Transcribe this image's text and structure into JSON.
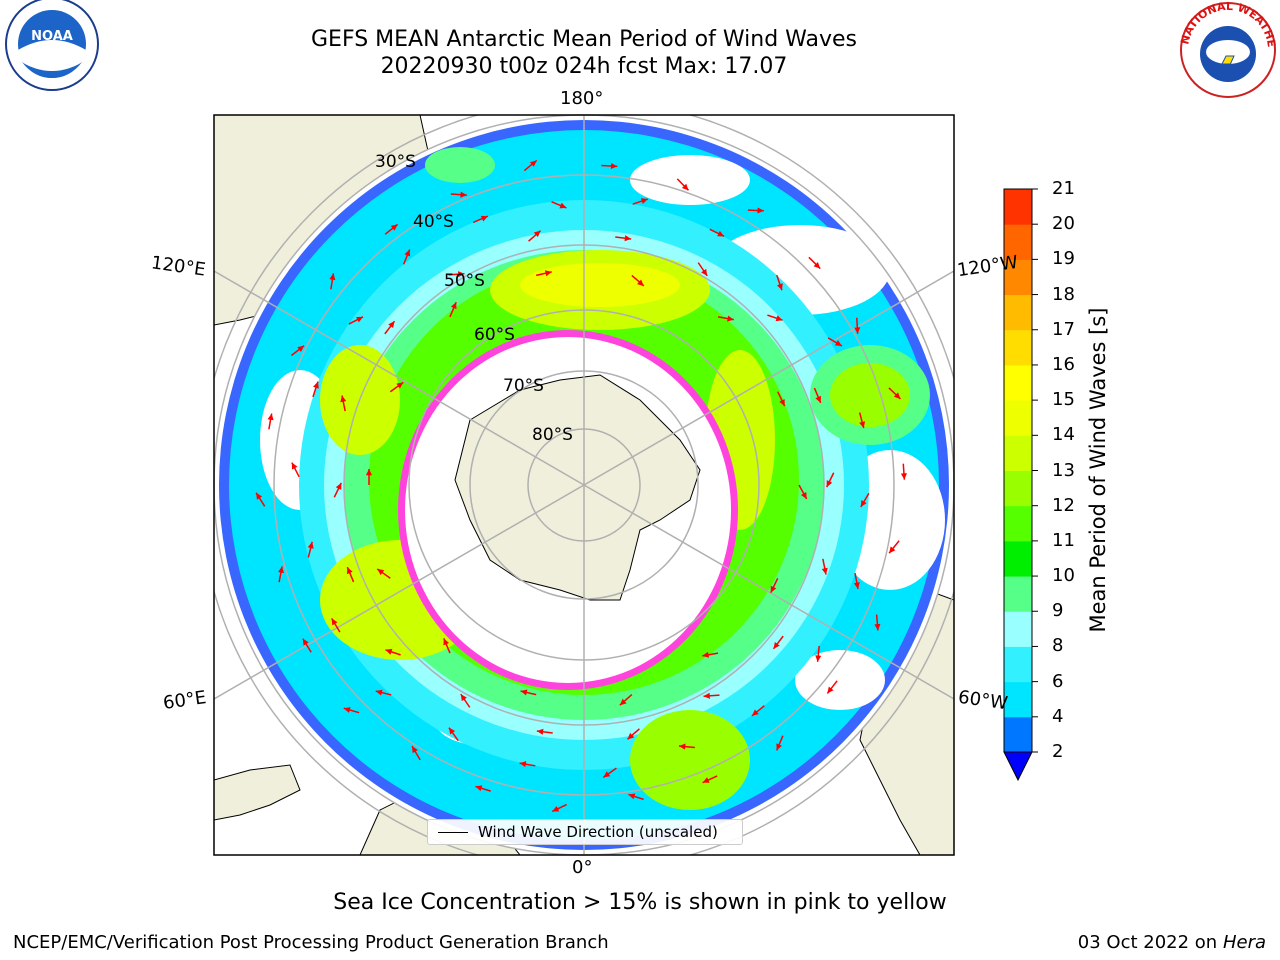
{
  "title": {
    "line1": "GEFS MEAN Antarctic Mean Period of Wind Waves",
    "line2": "20220930 t00z 024h fcst   Max: 17.07"
  },
  "map": {
    "lon_labels": {
      "top": "180°",
      "bottom": "0°",
      "upper_left": "120°E",
      "upper_right": "120°W",
      "lower_left": "60°E",
      "lower_right": "60°W"
    },
    "lat_labels": [
      "30°S",
      "40°S",
      "50°S",
      "60°S",
      "70°S",
      "80°S"
    ],
    "legend_label": "Wind Wave Direction (unscaled)",
    "colors": {
      "land": "#efefdc",
      "grid": "#b0b0b0",
      "arrow": "#ff0000",
      "ice_edge": "#ff44dd"
    }
  },
  "colorbar": {
    "label": "Mean Period of Wind Waves [s]",
    "ticks": [
      "2",
      "4",
      "6",
      "8",
      "9",
      "10",
      "11",
      "12",
      "13",
      "14",
      "15",
      "16",
      "17",
      "18",
      "19",
      "20",
      "21"
    ],
    "colors": [
      "#0077ff",
      "#00e5ff",
      "#33f0ff",
      "#99ffff",
      "#55ff88",
      "#00ee00",
      "#55ff00",
      "#99ff00",
      "#ccff00",
      "#eeff00",
      "#ffff00",
      "#ffdd00",
      "#ffbb00",
      "#ff8800",
      "#ff6600",
      "#ff3300"
    ],
    "under_color": "#0000ff"
  },
  "subtitle": "Sea Ice Concentration > 15% is shown in pink to yellow",
  "footer": {
    "left": "NCEP/EMC/Verification Post Processing Product Generation Branch",
    "right_date": "03 Oct 2022 on",
    "right_host": "Hera"
  },
  "logos": {
    "noaa": "NOAA",
    "nws": "NATIONAL WEATHER SERVICE"
  }
}
